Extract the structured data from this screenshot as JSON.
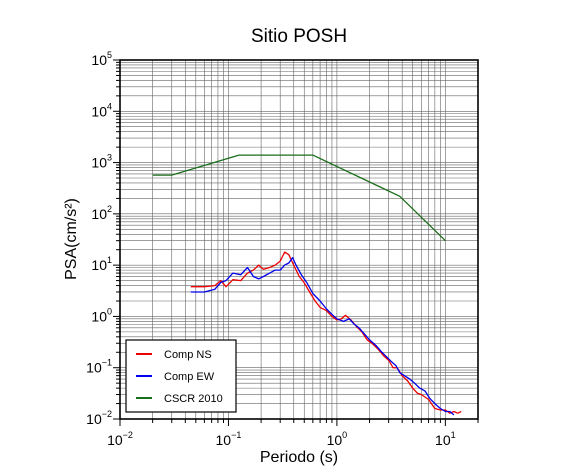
{
  "chart_data": {
    "type": "line",
    "title": "Sitio POSH",
    "xlabel": "Periodo (s)",
    "ylabel": "PSA(cm/s²)",
    "xscale": "log",
    "yscale": "log",
    "xlim": [
      0.01,
      20
    ],
    "ylim": [
      0.01,
      100000
    ],
    "x_ticks": [
      {
        "base": "10",
        "exp": "−2",
        "value": 0.01
      },
      {
        "base": "10",
        "exp": "−1",
        "value": 0.1
      },
      {
        "base": "10",
        "exp": "0",
        "value": 1
      },
      {
        "base": "10",
        "exp": "1",
        "value": 10
      }
    ],
    "y_ticks": [
      {
        "base": "10",
        "exp": "−2",
        "value": 0.01
      },
      {
        "base": "10",
        "exp": "−1",
        "value": 0.1
      },
      {
        "base": "10",
        "exp": "0",
        "value": 1
      },
      {
        "base": "10",
        "exp": "1",
        "value": 10
      },
      {
        "base": "10",
        "exp": "2",
        "value": 100
      },
      {
        "base": "10",
        "exp": "3",
        "value": 1000
      },
      {
        "base": "10",
        "exp": "4",
        "value": 10000
      },
      {
        "base": "10",
        "exp": "5",
        "value": 100000
      }
    ],
    "grid": true,
    "legend_position": "bottom-left",
    "series": [
      {
        "name": "Comp NS",
        "color": "#ee0000",
        "points": [
          [
            0.045,
            3.8
          ],
          [
            0.06,
            3.8
          ],
          [
            0.075,
            4.0
          ],
          [
            0.085,
            5.0
          ],
          [
            0.095,
            3.8
          ],
          [
            0.11,
            5.2
          ],
          [
            0.13,
            5.0
          ],
          [
            0.15,
            7.0
          ],
          [
            0.17,
            8.0
          ],
          [
            0.19,
            10.0
          ],
          [
            0.21,
            8.3
          ],
          [
            0.24,
            9.0
          ],
          [
            0.27,
            10.0
          ],
          [
            0.3,
            12.0
          ],
          [
            0.33,
            18.0
          ],
          [
            0.36,
            16.0
          ],
          [
            0.4,
            10.0
          ],
          [
            0.45,
            6.0
          ],
          [
            0.5,
            4.5
          ],
          [
            0.56,
            3.0
          ],
          [
            0.63,
            2.0
          ],
          [
            0.7,
            1.5
          ],
          [
            0.8,
            1.3
          ],
          [
            0.9,
            1.0
          ],
          [
            1.0,
            0.85
          ],
          [
            1.1,
            0.9
          ],
          [
            1.2,
            1.05
          ],
          [
            1.35,
            0.85
          ],
          [
            1.5,
            0.65
          ],
          [
            1.7,
            0.5
          ],
          [
            1.9,
            0.35
          ],
          [
            2.1,
            0.3
          ],
          [
            2.4,
            0.23
          ],
          [
            2.7,
            0.17
          ],
          [
            3.0,
            0.14
          ],
          [
            3.3,
            0.1
          ],
          [
            3.6,
            0.1
          ],
          [
            4.0,
            0.07
          ],
          [
            4.5,
            0.055
          ],
          [
            5.0,
            0.04
          ],
          [
            5.5,
            0.032
          ],
          [
            6.0,
            0.03
          ],
          [
            7.0,
            0.024
          ],
          [
            8.0,
            0.016
          ],
          [
            9.0,
            0.015
          ],
          [
            10.0,
            0.015
          ],
          [
            11.0,
            0.013
          ],
          [
            12.0,
            0.014
          ],
          [
            13.0,
            0.013
          ],
          [
            14.0,
            0.014
          ]
        ]
      },
      {
        "name": "Comp EW",
        "color": "#0000ee",
        "points": [
          [
            0.045,
            3.0
          ],
          [
            0.06,
            3.0
          ],
          [
            0.075,
            3.4
          ],
          [
            0.085,
            4.6
          ],
          [
            0.095,
            5.0
          ],
          [
            0.11,
            7.0
          ],
          [
            0.13,
            6.5
          ],
          [
            0.15,
            9.0
          ],
          [
            0.17,
            6.0
          ],
          [
            0.19,
            5.4
          ],
          [
            0.21,
            6.0
          ],
          [
            0.24,
            7.0
          ],
          [
            0.27,
            8.0
          ],
          [
            0.3,
            8.0
          ],
          [
            0.33,
            10.0
          ],
          [
            0.36,
            11.0
          ],
          [
            0.39,
            14.0
          ],
          [
            0.42,
            10.0
          ],
          [
            0.47,
            6.5
          ],
          [
            0.53,
            4.5
          ],
          [
            0.6,
            2.8
          ],
          [
            0.7,
            2.0
          ],
          [
            0.8,
            1.4
          ],
          [
            0.9,
            1.1
          ],
          [
            1.0,
            0.9
          ],
          [
            1.15,
            0.8
          ],
          [
            1.3,
            0.9
          ],
          [
            1.45,
            0.7
          ],
          [
            1.6,
            0.6
          ],
          [
            1.8,
            0.45
          ],
          [
            2.0,
            0.35
          ],
          [
            2.3,
            0.27
          ],
          [
            2.6,
            0.2
          ],
          [
            2.9,
            0.16
          ],
          [
            3.2,
            0.13
          ],
          [
            3.5,
            0.11
          ],
          [
            3.8,
            0.08
          ],
          [
            4.2,
            0.07
          ],
          [
            4.7,
            0.06
          ],
          [
            5.2,
            0.05
          ],
          [
            5.8,
            0.04
          ],
          [
            6.5,
            0.035
          ],
          [
            7.2,
            0.025
          ],
          [
            8.0,
            0.02
          ],
          [
            9.0,
            0.016
          ],
          [
            10.0,
            0.014
          ],
          [
            11.0,
            0.014
          ],
          [
            12.0,
            0.012
          ]
        ]
      },
      {
        "name": "CSCR 2010",
        "color": "#1a6e1a",
        "points": [
          [
            0.02,
            570
          ],
          [
            0.03,
            570
          ],
          [
            0.125,
            1400
          ],
          [
            0.6,
            1400
          ],
          [
            3.8,
            220
          ],
          [
            10.0,
            30
          ]
        ]
      }
    ]
  }
}
